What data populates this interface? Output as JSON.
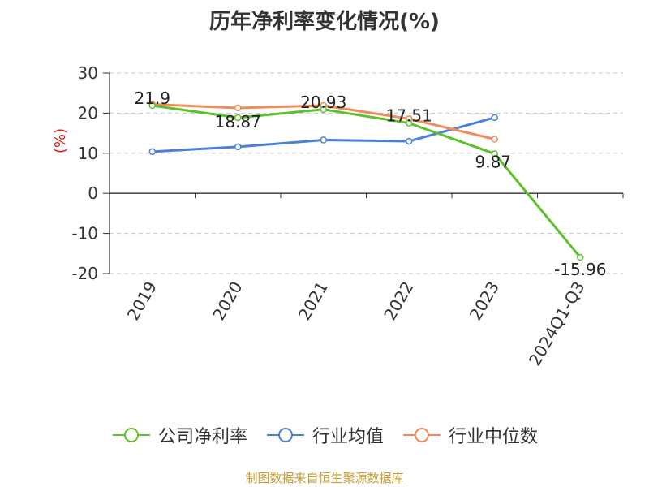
{
  "chart_data": {
    "type": "line",
    "title": "历年净利率变化情况(%)",
    "ylabel": "(%)",
    "categories": [
      "2019",
      "2020",
      "2021",
      "2022",
      "2023",
      "2024Q1-Q3"
    ],
    "ylim": [
      -20,
      30
    ],
    "yticks": [
      30,
      20,
      10,
      0,
      -10,
      -20
    ],
    "grid": true,
    "legend_position": "bottom",
    "series": [
      {
        "name": "公司净利率",
        "color": "#5cc12a",
        "values": [
          21.9,
          18.87,
          20.93,
          17.51,
          9.87,
          -15.96
        ],
        "labels": [
          "21.9",
          "18.87",
          "20.93",
          "17.51",
          "9.87",
          "-15.96"
        ]
      },
      {
        "name": "行业均值",
        "color": "#4a7fdc",
        "values": [
          10.4,
          11.6,
          13.3,
          13.0,
          18.9,
          null
        ]
      },
      {
        "name": "行业中位数",
        "color": "#f08c5a",
        "values": [
          22.2,
          21.3,
          21.9,
          18.6,
          13.5,
          null
        ]
      }
    ]
  },
  "footer": "制图数据来自恒生聚源数据库"
}
